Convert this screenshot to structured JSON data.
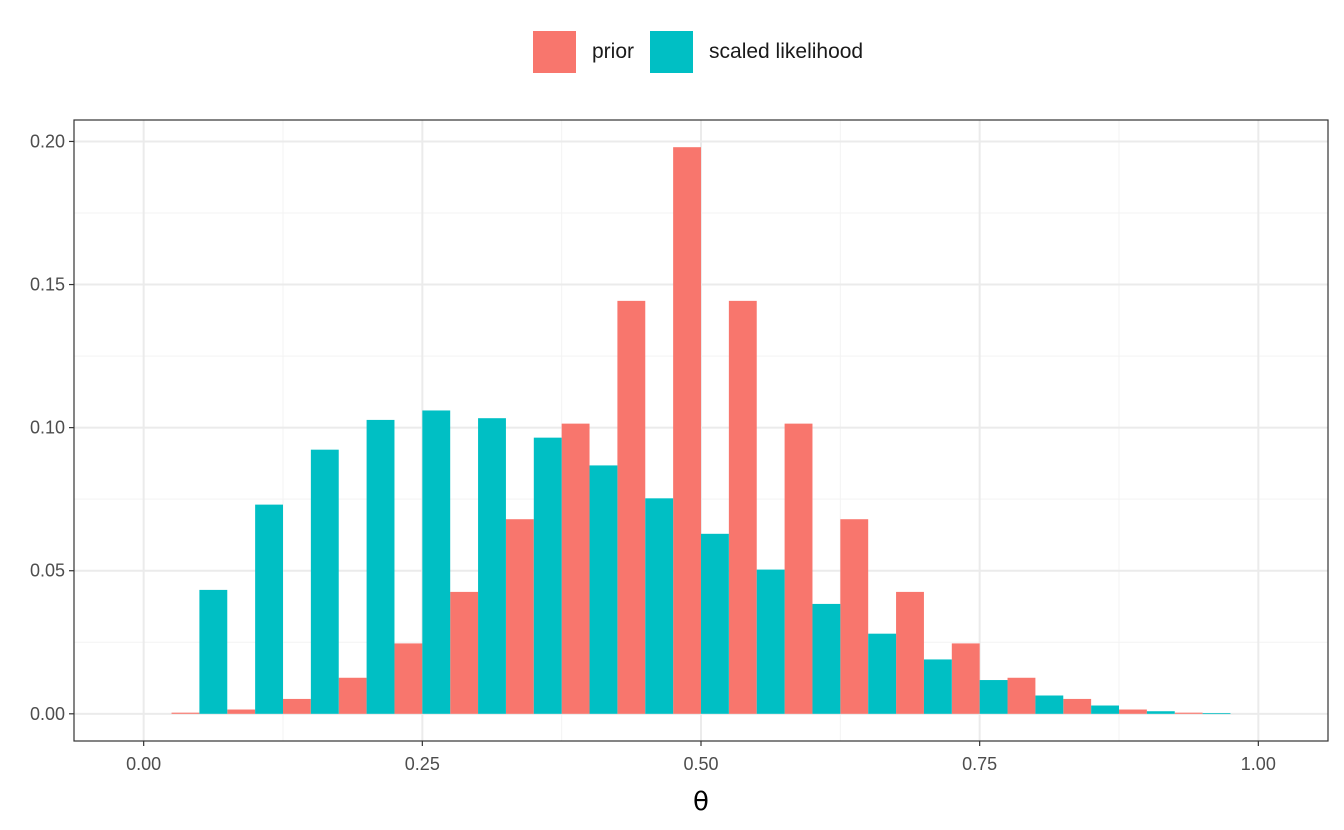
{
  "chart_data": {
    "type": "bar",
    "title": "",
    "xlabel": "θ",
    "ylabel": "",
    "x": [
      0.05,
      0.1,
      0.15,
      0.2,
      0.25,
      0.3,
      0.35,
      0.4,
      0.45,
      0.5,
      0.55,
      0.6,
      0.65,
      0.7,
      0.75,
      0.8,
      0.85,
      0.9,
      0.95
    ],
    "series": [
      {
        "name": "prior",
        "color": "#F8766D",
        "values": [
          0.0004,
          0.0015,
          0.0052,
          0.0126,
          0.0246,
          0.0426,
          0.068,
          0.1014,
          0.1443,
          0.198,
          0.1443,
          0.1014,
          0.068,
          0.0426,
          0.0246,
          0.0126,
          0.0052,
          0.0015,
          0.0004
        ]
      },
      {
        "name": "scaled likelihood",
        "color": "#00BFC4",
        "values": [
          0.0433,
          0.0731,
          0.0923,
          0.1027,
          0.106,
          0.1033,
          0.0965,
          0.0868,
          0.0753,
          0.0629,
          0.0504,
          0.0384,
          0.028,
          0.019,
          0.0118,
          0.0064,
          0.0029,
          0.0009,
          0.0002
        ]
      }
    ],
    "xlim": [
      -0.0625,
      1.0625
    ],
    "ylim": [
      -0.0095,
      0.2075
    ],
    "x_ticks": [
      0.0,
      0.25,
      0.5,
      0.75,
      1.0
    ],
    "x_tick_labels": [
      "0.00",
      "0.25",
      "0.50",
      "0.75",
      "1.00"
    ],
    "y_ticks": [
      0.0,
      0.05,
      0.1,
      0.15,
      0.2
    ],
    "y_tick_labels": [
      "0.00",
      "0.05",
      "0.10",
      "0.15",
      "0.20"
    ],
    "bar_width": 0.025,
    "grid": true,
    "legend_position": "top",
    "panel_border_color": "#333333",
    "grid_major_color": "#EBEBEB",
    "grid_minor_color": "#F3F3F3"
  }
}
